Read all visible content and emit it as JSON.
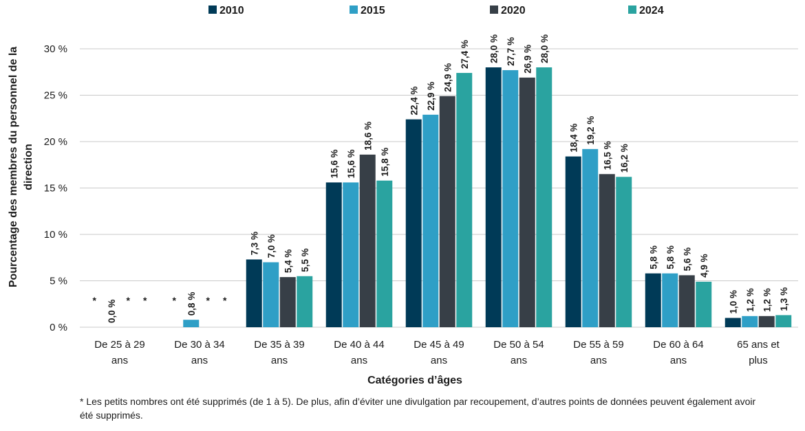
{
  "chart_data": {
    "type": "bar",
    "title": "",
    "xlabel": "Catégories d’âges",
    "ylabel": "Pourcentage des membres du personnel de la direction",
    "ylim": [
      0,
      30
    ],
    "yticks": [
      0,
      5,
      10,
      15,
      20,
      25,
      30
    ],
    "ytick_labels": [
      "0 %",
      "5 %",
      "10 %",
      "15 %",
      "20 %",
      "25 %",
      "30 %"
    ],
    "grid": true,
    "legend_position": "top",
    "categories": [
      [
        "De 25 à 29",
        "ans"
      ],
      [
        "De 30 à 34",
        "ans"
      ],
      [
        "De 35 à 39",
        "ans"
      ],
      [
        "De 40 à 44",
        "ans"
      ],
      [
        "De 45 à 49",
        "ans"
      ],
      [
        "De 50 à 54",
        "ans"
      ],
      [
        "De 55 à 59",
        "ans"
      ],
      [
        "De 60 à 64",
        "ans"
      ],
      [
        "65 ans et",
        "plus"
      ]
    ],
    "series": [
      {
        "name": "2010",
        "color": "#003a57",
        "values": [
          null,
          null,
          7.3,
          15.6,
          22.4,
          28.0,
          18.4,
          5.8,
          1.0
        ],
        "labels": [
          "*",
          "*",
          "7,3 %",
          "15,6 %",
          "22,4 %",
          "28,0 %",
          "18,4 %",
          "5,8 %",
          "1,0 %"
        ]
      },
      {
        "name": "2015",
        "color": "#2f9fc6",
        "values": [
          0.0,
          0.8,
          7.0,
          15.6,
          22.9,
          27.7,
          19.2,
          5.8,
          1.2
        ],
        "labels": [
          "0,0 %",
          "0,8 %",
          "7,0 %",
          "15,6 %",
          "22,9 %",
          "27,7 %",
          "19,2 %",
          "5,8 %",
          "1,2 %"
        ]
      },
      {
        "name": "2020",
        "color": "#373f47",
        "values": [
          null,
          null,
          5.4,
          18.6,
          24.9,
          26.9,
          16.5,
          5.6,
          1.2
        ],
        "labels": [
          "*",
          "*",
          "5,4 %",
          "18,6 %",
          "24,9 %",
          "26,9 %",
          "16,5 %",
          "5,6 %",
          "1,2 %"
        ]
      },
      {
        "name": "2024",
        "color": "#2aa3a0",
        "values": [
          null,
          null,
          5.5,
          15.8,
          27.4,
          28.0,
          16.2,
          4.9,
          1.3
        ],
        "labels": [
          "*",
          "*",
          "5,5 %",
          "15,8 %",
          "27,4 %",
          "28,0 %",
          "16,2 %",
          "4,9 %",
          "1,3 %"
        ]
      }
    ],
    "footnote": "* Les petits nombres ont été supprimés (de 1 à 5). De plus, afin d’éviter une divulgation par recoupement, d’autres points de données peuvent également avoir été supprimés."
  }
}
